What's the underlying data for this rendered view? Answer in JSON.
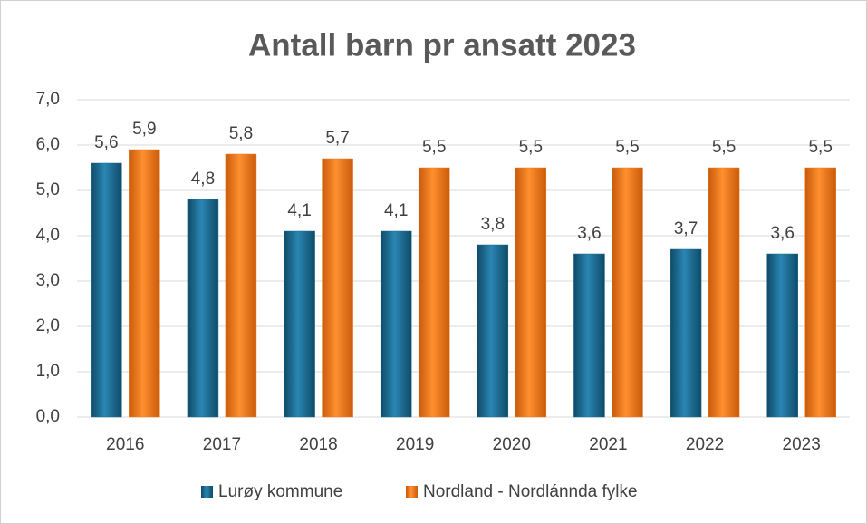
{
  "chart_data": {
    "type": "bar",
    "title": "Antall barn pr ansatt 2023",
    "categories": [
      "2016",
      "2017",
      "2018",
      "2019",
      "2020",
      "2021",
      "2022",
      "2023"
    ],
    "series": [
      {
        "name": "Lurøy kommune",
        "color": "#1b6a92",
        "values": [
          5.6,
          4.8,
          4.1,
          4.1,
          3.8,
          3.6,
          3.7,
          3.6
        ],
        "value_labels": [
          "5,6",
          "4,8",
          "4,1",
          "4,1",
          "3,8",
          "3,6",
          "3,7",
          "3,6"
        ]
      },
      {
        "name": "Nordland - Nordlánnda fylke",
        "color": "#f07a1a",
        "values": [
          5.9,
          5.8,
          5.7,
          5.5,
          5.5,
          5.5,
          5.5,
          5.5
        ],
        "value_labels": [
          "5,9",
          "5,8",
          "5,7",
          "5,5",
          "5,5",
          "5,5",
          "5,5",
          "5,5"
        ]
      }
    ],
    "ylim": [
      0,
      7
    ],
    "yticks": [
      {
        "value": 0,
        "label": "0,0"
      },
      {
        "value": 1,
        "label": "1,0"
      },
      {
        "value": 2,
        "label": "2,0"
      },
      {
        "value": 3,
        "label": "3,0"
      },
      {
        "value": 4,
        "label": "4,0"
      },
      {
        "value": 5,
        "label": "5,0"
      },
      {
        "value": 6,
        "label": "6,0"
      },
      {
        "value": 7,
        "label": "7,0"
      }
    ],
    "grid": true,
    "legend": "bottom"
  }
}
